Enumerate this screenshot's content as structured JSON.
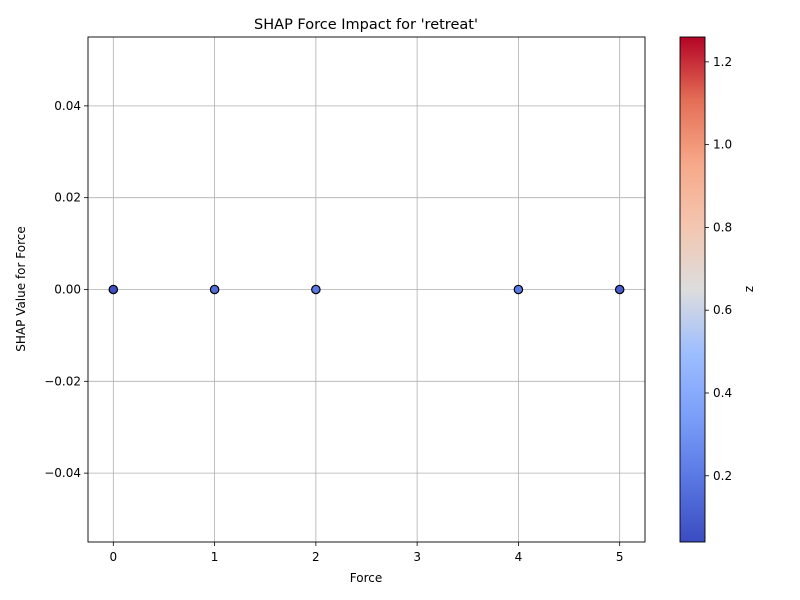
{
  "chart_data": {
    "type": "scatter",
    "title": "SHAP Force Impact for 'retreat'",
    "xlabel": "Force",
    "ylabel": "SHAP Value for Force",
    "xlim": [
      -0.25,
      5.25
    ],
    "ylim": [
      -0.055,
      0.055
    ],
    "xticks": [
      0,
      1,
      2,
      3,
      4,
      5
    ],
    "yticks": [
      -0.04,
      -0.02,
      0.0,
      0.02,
      0.04
    ],
    "ytick_labels": [
      "−0.04",
      "−0.02",
      "0.00",
      "0.02",
      "0.04"
    ],
    "grid": true,
    "points": [
      {
        "x": 0,
        "y": 0.0,
        "z": 0.05
      },
      {
        "x": 1,
        "y": 0.0,
        "z": 0.15
      },
      {
        "x": 2,
        "y": 0.0,
        "z": 0.2
      },
      {
        "x": 4,
        "y": 0.0,
        "z": 0.2
      },
      {
        "x": 5,
        "y": 0.0,
        "z": 0.1
      }
    ],
    "colorbar": {
      "label": "z",
      "colormap": "coolwarm",
      "range": [
        0.04,
        1.26
      ],
      "ticks": [
        0.2,
        0.4,
        0.6,
        0.8,
        1.0,
        1.2
      ],
      "tick_labels": [
        "0.2",
        "0.4",
        "0.6",
        "0.8",
        "1.0",
        "1.2"
      ]
    }
  }
}
